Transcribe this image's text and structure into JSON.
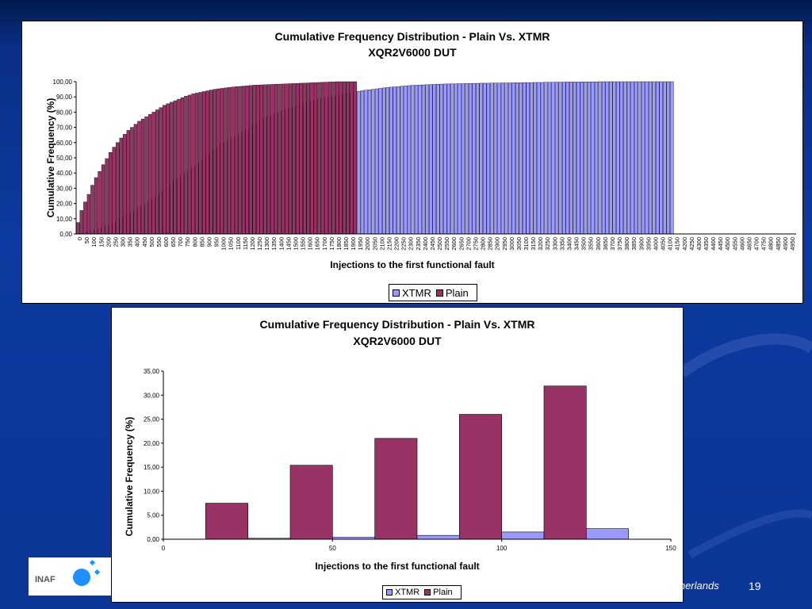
{
  "footer": {
    "logo_text": "INAF",
    "footer_fragment": "etherlands",
    "page_number": "19"
  },
  "colors": {
    "xtmr": "#9999ff",
    "plain": "#993366",
    "background": "#0d3aa0"
  },
  "chart_data": [
    {
      "type": "bar",
      "title": "Cumulative Frequency Distribution - Plain Vs. XTMR",
      "subtitle": "XQR2V6000 DUT",
      "xlabel": "Injections to the first functional fault",
      "ylabel": "Cumulative Frequency (%)",
      "ylim": [
        0,
        100
      ],
      "y_ticks": [
        "0,00",
        "10,00",
        "20,00",
        "30,00",
        "40,00",
        "50,00",
        "60,00",
        "70,00",
        "80,00",
        "90,00",
        "100,00"
      ],
      "x_tick_labels": [
        "0",
        "50",
        "100",
        "150",
        "200",
        "250",
        "300",
        "350",
        "400",
        "450",
        "500",
        "550",
        "600",
        "650",
        "700",
        "750",
        "800",
        "850",
        "900",
        "950",
        "1000",
        "1050",
        "1100",
        "1150",
        "1200",
        "1250",
        "1300",
        "1350",
        "1400",
        "1450",
        "1500",
        "1550",
        "1600",
        "1650",
        "1700",
        "1750",
        "1800",
        "1850",
        "1900",
        "1950",
        "2000",
        "2050",
        "2100",
        "2150",
        "2200",
        "2250",
        "2300",
        "2350",
        "2400",
        "2450",
        "2500",
        "2550",
        "2600",
        "2650",
        "2700",
        "2750",
        "2800",
        "2850",
        "2900",
        "2950",
        "3000",
        "3050",
        "3100",
        "3150",
        "3200",
        "3250",
        "3300",
        "3350",
        "3400",
        "3450",
        "3500",
        "3550",
        "3600",
        "3650",
        "3700",
        "3750",
        "3800",
        "3850",
        "3900",
        "3950",
        "4000",
        "4050",
        "4100",
        "4150",
        "4200",
        "4250",
        "4300",
        "4350",
        "4400",
        "4450",
        "4500",
        "4550",
        "4600",
        "4650",
        "4700",
        "4750",
        "4800",
        "4850",
        "4900",
        "4950"
      ],
      "grid": false,
      "legend": "bottom",
      "series": [
        {
          "name": "XTMR",
          "values": [
            0.2,
            0.4,
            0.8,
            1.3,
            2.0,
            2.7,
            3.5,
            4.4,
            5.4,
            6.5,
            7.6,
            8.8,
            10.0,
            11.3,
            12.7,
            14.1,
            15.6,
            17.1,
            18.7,
            20.4,
            22.1,
            23.8,
            25.6,
            27.4,
            29.2,
            31.0,
            32.9,
            34.8,
            36.7,
            38.6,
            40.5,
            42.4,
            44.3,
            46.2,
            48.1,
            50.0,
            51.8,
            53.6,
            55.4,
            57.1,
            58.8,
            60.5,
            62.1,
            63.7,
            65.2,
            66.7,
            68.1,
            69.5,
            70.9,
            72.2,
            73.5,
            74.7,
            75.9,
            77.0,
            78.1,
            79.1,
            80.1,
            81.1,
            82.0,
            82.9,
            83.7,
            84.5,
            85.3,
            86.0,
            86.7,
            87.4,
            88.0,
            88.6,
            89.2,
            89.8,
            90.3,
            90.8,
            91.3,
            91.7,
            92.1,
            92.5,
            92.9,
            93.3,
            93.7,
            94.1,
            94.4,
            94.7,
            95.0,
            95.3,
            95.6,
            95.9,
            96.2,
            96.4,
            96.6,
            96.8,
            97.0,
            97.2,
            97.4,
            97.6,
            97.7,
            97.8,
            97.9,
            98.0,
            98.1,
            98.2,
            98.3,
            98.4,
            98.5,
            98.5,
            98.6,
            98.6,
            98.7,
            98.7,
            98.8,
            98.8,
            98.9,
            98.9,
            99.0,
            99.0,
            99.0,
            99.1,
            99.1,
            99.1,
            99.2,
            99.2,
            99.2,
            99.3,
            99.3,
            99.3,
            99.4,
            99.4,
            99.4,
            99.5,
            99.5,
            99.5,
            99.6,
            99.6,
            99.6,
            99.7,
            99.7,
            99.7,
            99.8,
            99.8,
            99.8,
            99.8,
            99.9,
            99.9,
            99.9,
            99.9,
            99.9,
            100.0,
            100.0,
            100.0,
            100.0,
            100.0,
            100.0,
            100.0,
            100.0,
            100.0,
            100.0,
            100.0,
            100.0,
            100.0,
            100.0,
            100.0,
            100.0,
            100.0,
            100.0,
            100.0,
            100.0,
            100.0
          ]
        },
        {
          "name": "Plain",
          "values": [
            7.5,
            15.4,
            21.0,
            26.0,
            32.0,
            37.0,
            41.0,
            45.5,
            49.5,
            53.5,
            57.0,
            60.0,
            63.0,
            65.5,
            68.0,
            70.0,
            72.0,
            74.0,
            75.5,
            77.0,
            78.5,
            80.0,
            81.5,
            83.0,
            84.5,
            85.5,
            86.5,
            87.5,
            88.5,
            89.5,
            90.5,
            91.2,
            92.0,
            92.5,
            93.0,
            93.5,
            94.0,
            94.5,
            95.0,
            95.3,
            95.6,
            95.9,
            96.2,
            96.5,
            96.7,
            96.9,
            97.1,
            97.3,
            97.5,
            97.7,
            97.8,
            97.9,
            98.0,
            98.1,
            98.2,
            98.3,
            98.4,
            98.5,
            98.6,
            98.7,
            98.8,
            98.9,
            99.0,
            99.1,
            99.2,
            99.3,
            99.4,
            99.5,
            99.6,
            99.7,
            99.8,
            99.9,
            100.0,
            100.0,
            100.0,
            100.0,
            100.0,
            100.0
          ]
        }
      ]
    },
    {
      "type": "bar",
      "title": "Cumulative Frequency Distribution - Plain Vs. XTMR",
      "subtitle": "XQR2V6000 DUT",
      "xlabel": "Injections to the first functional fault",
      "ylabel": "Cumulative Frequency (%)",
      "ylim": [
        0,
        35
      ],
      "xlim": [
        0,
        150
      ],
      "y_ticks": [
        "0,00",
        "5,00",
        "10,00",
        "15,00",
        "20,00",
        "25,00",
        "30,00",
        "35,00"
      ],
      "x_ticks": [
        "0",
        "50",
        "100",
        "150"
      ],
      "grid": false,
      "legend": "bottom",
      "categories": [
        25,
        50,
        75,
        100,
        125
      ],
      "series": [
        {
          "name": "XTMR",
          "values": [
            0.2,
            0.4,
            0.8,
            1.5,
            2.2
          ]
        },
        {
          "name": "Plain",
          "values": [
            7.5,
            15.4,
            21.0,
            26.0,
            31.9
          ]
        }
      ]
    }
  ]
}
